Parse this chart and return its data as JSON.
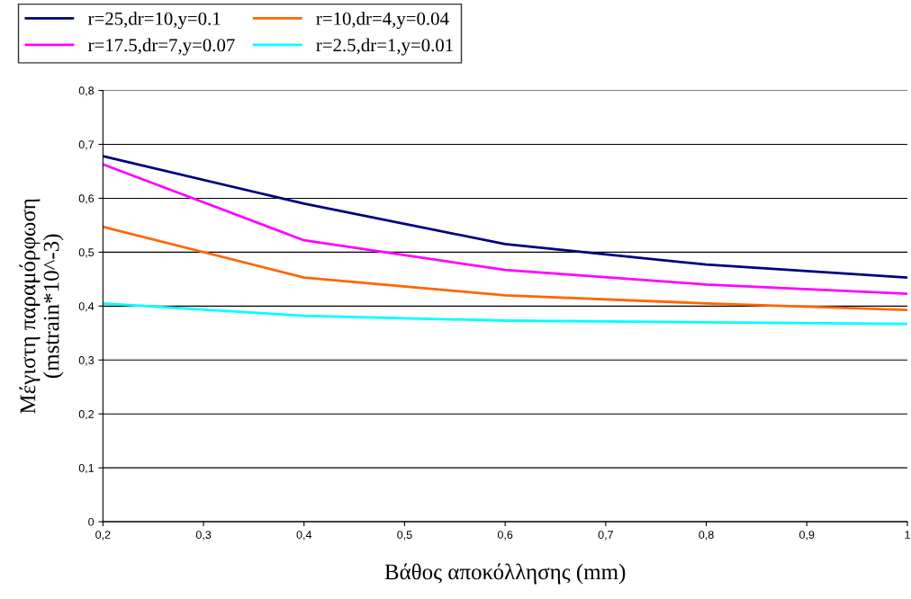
{
  "chart_data": {
    "type": "line",
    "xlabel": "Βάθος αποκόλλησης (mm)",
    "ylabel": "Μέγιστη παραμόρφωση\n(mstrain*10^-3)",
    "x": [
      0.2,
      0.4,
      0.6,
      0.8,
      1
    ],
    "series": [
      {
        "name": "r=25,dr=10,y=0.1",
        "color": "#000080",
        "values": [
          0.678,
          0.59,
          0.515,
          0.477,
          0.453
        ]
      },
      {
        "name": "r=17.5,dr=7,y=0.07",
        "color": "#ff00ff",
        "values": [
          0.663,
          0.522,
          0.467,
          0.44,
          0.423
        ]
      },
      {
        "name": "r=10,dr=4,y=0.04",
        "color": "#ff6600",
        "values": [
          0.547,
          0.453,
          0.42,
          0.405,
          0.393
        ]
      },
      {
        "name": "r=2.5,dr=1,y=0.01",
        "color": "#00ffff",
        "values": [
          0.405,
          0.382,
          0.373,
          0.37,
          0.367
        ]
      }
    ],
    "xlim": [
      0.2,
      1
    ],
    "ylim": [
      0,
      0.8
    ],
    "xticks": [
      {
        "value": 0.2,
        "label": "0,2"
      },
      {
        "value": 0.3,
        "label": "0,3"
      },
      {
        "value": 0.4,
        "label": "0,4"
      },
      {
        "value": 0.5,
        "label": "0,5"
      },
      {
        "value": 0.6,
        "label": "0,6"
      },
      {
        "value": 0.7,
        "label": "0,7"
      },
      {
        "value": 0.8,
        "label": "0,8"
      },
      {
        "value": 0.9,
        "label": "0,9"
      },
      {
        "value": 1,
        "label": "1"
      }
    ],
    "yticks": [
      0,
      {
        "value": 0.1,
        "label": "0,1"
      },
      {
        "value": 0.2,
        "label": "0,2"
      },
      {
        "value": 0.3,
        "label": "0,3"
      },
      {
        "value": 0.4,
        "label": "0,4"
      },
      {
        "value": 0.5,
        "label": "0,5"
      },
      {
        "value": 0.6,
        "label": "0,6"
      },
      {
        "value": 0.7,
        "label": "0,7"
      },
      {
        "value": 0.8,
        "label": "0,8"
      }
    ],
    "grid": "y",
    "legend": "top",
    "marker": "none",
    "line_style": "solid"
  }
}
